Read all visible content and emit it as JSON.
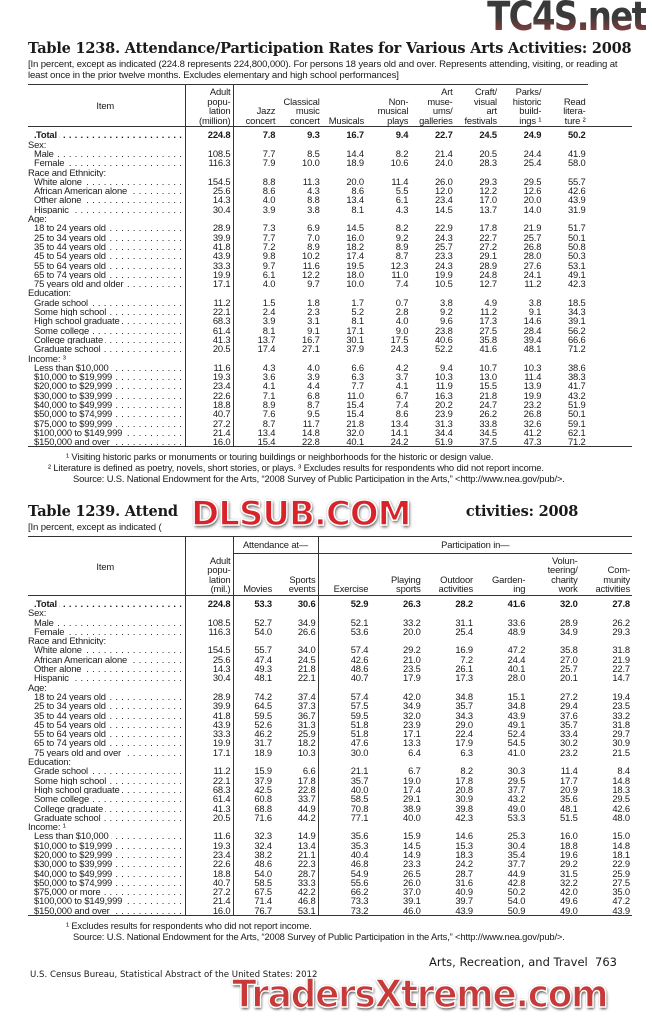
{
  "watermarks": {
    "top": "TC4S.net",
    "middle": "DLSUB.COM",
    "bottom": "TradersXtreme.com"
  },
  "table1": {
    "title": "Table 1238. Attendance/Participation Rates for Various Arts Activities: 2008",
    "headnote": "[In percent, except as indicated (224.8 represents 224,800,000). For persons 18 years old and over. Represents attending, visiting, or reading at least once in the prior twelve months. Excludes elementary and high school performances]",
    "columns": [
      "Item",
      "Adult\npopu-\nlation\n(million)",
      "Jazz\nconcert",
      "Classical\nmusic\nconcert",
      "Musicals",
      "Non-\nmusical\nplays",
      "Art\nmuse-\nums/\ngalleries",
      "Craft/\nvisual\nart\nfestivals",
      "Parks/\nhistoric\nbuild-\nings ¹",
      "Read\nlitera-\nture ²"
    ],
    "rows": [
      {
        "label": "Total",
        "kind": "total",
        "values": [
          "224.8",
          "7.8",
          "9.3",
          "16.7",
          "9.4",
          "22.7",
          "24.5",
          "24.9",
          "50.2"
        ]
      },
      {
        "label": "Sex:",
        "kind": "group"
      },
      {
        "label": "Male",
        "values": [
          "108.5",
          "7.7",
          "8.5",
          "14.4",
          "8.2",
          "21.4",
          "20.5",
          "24.4",
          "41.9"
        ]
      },
      {
        "label": "Female",
        "values": [
          "116.3",
          "7.9",
          "10.0",
          "18.9",
          "10.6",
          "24.0",
          "28.3",
          "25.4",
          "58.0"
        ]
      },
      {
        "label": "Race and Ethnicity:",
        "kind": "group"
      },
      {
        "label": "White alone",
        "values": [
          "154.5",
          "8.8",
          "11.3",
          "20.0",
          "11.4",
          "26.0",
          "29.3",
          "29.5",
          "55.7"
        ]
      },
      {
        "label": "African American alone",
        "values": [
          "25.6",
          "8.6",
          "4.3",
          "8.6",
          "5.5",
          "12.0",
          "12.2",
          "12.6",
          "42.6"
        ]
      },
      {
        "label": "Other alone",
        "values": [
          "14.3",
          "4.0",
          "8.8",
          "13.4",
          "6.1",
          "23.4",
          "17.0",
          "20.0",
          "43.9"
        ]
      },
      {
        "label": "Hispanic",
        "values": [
          "30.4",
          "3.9",
          "3.8",
          "8.1",
          "4.3",
          "14.5",
          "13.7",
          "14.0",
          "31.9"
        ]
      },
      {
        "label": "Age:",
        "kind": "group"
      },
      {
        "label": "18 to 24 years old",
        "values": [
          "28.9",
          "7.3",
          "6.9",
          "14.5",
          "8.2",
          "22.9",
          "17.8",
          "21.9",
          "51.7"
        ]
      },
      {
        "label": "25 to 34 years old",
        "values": [
          "39.9",
          "7.7",
          "7.0",
          "16.0",
          "9.2",
          "24.3",
          "22.7",
          "25.7",
          "50.1"
        ]
      },
      {
        "label": "35 to 44 years old",
        "values": [
          "41.8",
          "7.2",
          "8.9",
          "18.2",
          "8.9",
          "25.7",
          "27.2",
          "26.8",
          "50.8"
        ]
      },
      {
        "label": "45 to 54 years old",
        "values": [
          "43.9",
          "9.8",
          "10.2",
          "17.4",
          "8.7",
          "23.3",
          "29.1",
          "28.0",
          "50.3"
        ]
      },
      {
        "label": "55 to 64 years old",
        "values": [
          "33.3",
          "9.7",
          "11.6",
          "19.5",
          "12.3",
          "24.3",
          "28.9",
          "27.6",
          "53.1"
        ]
      },
      {
        "label": "65 to 74 years old",
        "values": [
          "19.9",
          "6.1",
          "12.2",
          "18.0",
          "11.0",
          "19.9",
          "24.8",
          "24.1",
          "49.1"
        ]
      },
      {
        "label": "75 years old and older",
        "values": [
          "17.1",
          "4.0",
          "9.7",
          "10.0",
          "7.4",
          "10.5",
          "12.7",
          "11.2",
          "42.3"
        ]
      },
      {
        "label": "Education:",
        "kind": "group"
      },
      {
        "label": "Grade school",
        "values": [
          "11.2",
          "1.5",
          "1.8",
          "1.7",
          "0.7",
          "3.8",
          "4.9",
          "3.8",
          "18.5"
        ]
      },
      {
        "label": "Some high school",
        "values": [
          "22.1",
          "2.4",
          "2.3",
          "5.2",
          "2.8",
          "9.2",
          "11.2",
          "9.1",
          "34.3"
        ]
      },
      {
        "label": "High school graduate",
        "values": [
          "68.3",
          "3.9",
          "3.1",
          "8.1",
          "4.0",
          "9.6",
          "17.3",
          "14.6",
          "39.1"
        ]
      },
      {
        "label": "Some college",
        "values": [
          "61.4",
          "8.1",
          "9.1",
          "17.1",
          "9.0",
          "23.8",
          "27.5",
          "28.4",
          "56.2"
        ]
      },
      {
        "label": "College graduate",
        "values": [
          "41.3",
          "13.7",
          "16.7",
          "30.1",
          "17.5",
          "40.6",
          "35.8",
          "39.4",
          "66.6"
        ]
      },
      {
        "label": "Graduate school",
        "values": [
          "20.5",
          "17.4",
          "27.1",
          "37.9",
          "24.3",
          "52.2",
          "41.6",
          "48.1",
          "71.2"
        ]
      },
      {
        "label": "Income: ³",
        "kind": "group"
      },
      {
        "label": "Less than $10,000",
        "values": [
          "11.6",
          "4.3",
          "4.0",
          "6.6",
          "4.2",
          "9.4",
          "10.7",
          "10.3",
          "38.6"
        ]
      },
      {
        "label": "$10,000 to $19,999",
        "values": [
          "19.3",
          "3.6",
          "3.9",
          "6.3",
          "3.7",
          "10.3",
          "13.0",
          "11.4",
          "38.3"
        ]
      },
      {
        "label": "$20,000 to $29,999",
        "values": [
          "23.4",
          "4.1",
          "4.4",
          "7.7",
          "4.1",
          "11.9",
          "15.5",
          "13.9",
          "41.7"
        ]
      },
      {
        "label": "$30,000 to $39,999",
        "values": [
          "22.6",
          "7.1",
          "6.8",
          "11.0",
          "6.7",
          "16.3",
          "21.8",
          "19.9",
          "43.2"
        ]
      },
      {
        "label": "$40,000 to $49,999",
        "values": [
          "18.8",
          "8.9",
          "8.7",
          "15.4",
          "7.4",
          "20.2",
          "24.7",
          "23.2",
          "51.9"
        ]
      },
      {
        "label": "$50,000 to $74,999",
        "values": [
          "40.7",
          "7.6",
          "9.5",
          "15.4",
          "8.6",
          "23.9",
          "26.2",
          "26.8",
          "50.1"
        ]
      },
      {
        "label": "$75,000 to $99,999",
        "values": [
          "27.2",
          "8.7",
          "11.7",
          "21.8",
          "13.4",
          "31.3",
          "33.8",
          "32.6",
          "59.1"
        ]
      },
      {
        "label": "$100,000 to $149,999",
        "values": [
          "21.4",
          "13.4",
          "14.8",
          "32.0",
          "14.1",
          "34.4",
          "34.5",
          "41.2",
          "62.1"
        ]
      },
      {
        "label": "$150,000 and over",
        "values": [
          "16.0",
          "15.4",
          "22.8",
          "40.1",
          "24.2",
          "51.9",
          "37.5",
          "47.3",
          "71.2"
        ]
      }
    ],
    "footnotes": [
      "¹ Visiting historic parks or monuments or touring buildings or neighborhoods for the historic or design value.",
      "² Literature is defined as poetry, novels, short stories, or plays. ³ Excludes results for respondents who did not report income.",
      "Source: U.S. National Endowment for the Arts, “2008 Survey of Public Participation in the Arts,” <http://www.nea.gov/pub/>."
    ]
  },
  "table2": {
    "title_start": "Table 1239. Attend",
    "title_end": "ctivities: 2008",
    "headnote": "[In percent, except as indicated (",
    "span_headers": [
      "Attendance at—",
      "Participation in—"
    ],
    "columns": [
      "Item",
      "Adult\npopu-\nlation\n(mil.)",
      "Movies",
      "Sports\nevents",
      "Exercise",
      "Playing\nsports",
      "Outdoor\nactivities",
      "Garden-\ning",
      "Volun-\nteering/\ncharity\nwork",
      "Com-\nmunity\nactivities"
    ],
    "rows": [
      {
        "label": "Total",
        "kind": "total",
        "values": [
          "224.8",
          "53.3",
          "30.6",
          "52.9",
          "26.3",
          "28.2",
          "41.6",
          "32.0",
          "27.8"
        ]
      },
      {
        "label": "Sex:",
        "kind": "group"
      },
      {
        "label": "Male",
        "values": [
          "108.5",
          "52.7",
          "34.9",
          "52.1",
          "33.2",
          "31.1",
          "33.6",
          "28.9",
          "26.2"
        ]
      },
      {
        "label": "Female",
        "values": [
          "116.3",
          "54.0",
          "26.6",
          "53.6",
          "20.0",
          "25.4",
          "48.9",
          "34.9",
          "29.3"
        ]
      },
      {
        "label": "Race and Ethnicity:",
        "kind": "group"
      },
      {
        "label": "White alone",
        "values": [
          "154.5",
          "55.7",
          "34.0",
          "57.4",
          "29.2",
          "16.9",
          "47.2",
          "35.8",
          "31.8"
        ]
      },
      {
        "label": "African American alone",
        "values": [
          "25.6",
          "47.4",
          "24.5",
          "42.6",
          "21.0",
          "7.2",
          "24.4",
          "27.0",
          "21.9"
        ]
      },
      {
        "label": "Other alone",
        "values": [
          "14.3",
          "49.3",
          "21.8",
          "48.6",
          "23.5",
          "26.1",
          "40.1",
          "25.7",
          "22.7"
        ]
      },
      {
        "label": "Hispanic",
        "values": [
          "30.4",
          "48.1",
          "22.1",
          "40.7",
          "17.9",
          "17.3",
          "28.0",
          "20.1",
          "14.7"
        ]
      },
      {
        "label": "Age:",
        "kind": "group"
      },
      {
        "label": "18 to 24 years old",
        "values": [
          "28.9",
          "74.2",
          "37.4",
          "57.4",
          "42.0",
          "34.8",
          "15.1",
          "27.2",
          "19.4"
        ]
      },
      {
        "label": "25 to 34 years old",
        "values": [
          "39.9",
          "64.5",
          "37.3",
          "57.5",
          "34.9",
          "35.7",
          "34.8",
          "29.4",
          "23.5"
        ]
      },
      {
        "label": "35 to 44 years old",
        "values": [
          "41.8",
          "59.5",
          "36.7",
          "59.5",
          "32.0",
          "34.3",
          "43.9",
          "37.6",
          "33.2"
        ]
      },
      {
        "label": "45 to 54 years old",
        "values": [
          "43.9",
          "52.6",
          "31.3",
          "51.8",
          "23.9",
          "29.0",
          "49.1",
          "35.7",
          "31.8"
        ]
      },
      {
        "label": "55 to 64 years old",
        "values": [
          "33.3",
          "46.2",
          "25.9",
          "51.8",
          "17.1",
          "22.4",
          "52.4",
          "33.4",
          "29.7"
        ]
      },
      {
        "label": "65 to 74 years old",
        "values": [
          "19.9",
          "31.7",
          "18.2",
          "47.6",
          "13.3",
          "17.9",
          "54.5",
          "30.2",
          "30.9"
        ]
      },
      {
        "label": "75 years old and over",
        "values": [
          "17.1",
          "18.9",
          "10.3",
          "30.0",
          "6.4",
          "6.3",
          "41.0",
          "23.2",
          "21.5"
        ]
      },
      {
        "label": "Education:",
        "kind": "group"
      },
      {
        "label": "Grade school",
        "values": [
          "11.2",
          "15.9",
          "6.6",
          "21.1",
          "6.7",
          "8.2",
          "30.3",
          "11.4",
          "8.4"
        ]
      },
      {
        "label": "Some high school",
        "values": [
          "22.1",
          "37.9",
          "17.8",
          "35.7",
          "19.0",
          "17.8",
          "29.5",
          "17.7",
          "14.8"
        ]
      },
      {
        "label": "High school graduate",
        "values": [
          "68.3",
          "42.5",
          "22.8",
          "40.0",
          "17.4",
          "20.8",
          "37.7",
          "20.9",
          "18.3"
        ]
      },
      {
        "label": "Some college",
        "values": [
          "61.4",
          "60.8",
          "33.7",
          "58.5",
          "29.1",
          "30.9",
          "43.2",
          "35.6",
          "29.5"
        ]
      },
      {
        "label": "College graduate",
        "values": [
          "41.3",
          "68.8",
          "44.9",
          "70.8",
          "38.9",
          "39.8",
          "49.0",
          "48.1",
          "42.6"
        ]
      },
      {
        "label": "Graduate school",
        "values": [
          "20.5",
          "71.6",
          "44.2",
          "77.1",
          "40.0",
          "42.3",
          "53.3",
          "51.5",
          "48.0"
        ]
      },
      {
        "label": "Income: ¹",
        "kind": "group"
      },
      {
        "label": "Less than $10,000",
        "values": [
          "11.6",
          "32.3",
          "14.9",
          "35.6",
          "15.9",
          "14.6",
          "25.3",
          "16.0",
          "15.0"
        ]
      },
      {
        "label": "$10,000 to $19,999",
        "values": [
          "19.3",
          "32.4",
          "13.4",
          "35.3",
          "14.5",
          "15.3",
          "30.4",
          "18.8",
          "14.8"
        ]
      },
      {
        "label": "$20,000 to $29,999",
        "values": [
          "23.4",
          "38.2",
          "21.1",
          "40.4",
          "14.9",
          "18.3",
          "35.4",
          "19.6",
          "18.1"
        ]
      },
      {
        "label": "$30,000 to $39,999",
        "values": [
          "22.6",
          "48.6",
          "22.3",
          "46.8",
          "23.3",
          "24.2",
          "37.7",
          "29.2",
          "22.9"
        ]
      },
      {
        "label": "$40,000 to $49,999",
        "values": [
          "18.8",
          "54.0",
          "28.7",
          "54.9",
          "26.5",
          "28.7",
          "44.9",
          "31.5",
          "25.9"
        ]
      },
      {
        "label": "$50,000 to $74,999",
        "values": [
          "40.7",
          "58.5",
          "33.3",
          "55.6",
          "26.0",
          "31.6",
          "42.8",
          "32.2",
          "27.5"
        ]
      },
      {
        "label": "$75,000 or more",
        "values": [
          "27.2",
          "67.5",
          "42.2",
          "66.2",
          "37.0",
          "40.9",
          "50.2",
          "42.0",
          "35.0"
        ]
      },
      {
        "label": "$100,000 to $149,999",
        "values": [
          "21.4",
          "71.4",
          "46.8",
          "73.3",
          "39.1",
          "39.7",
          "54.0",
          "49.6",
          "47.2"
        ]
      },
      {
        "label": "$150,000 and over",
        "values": [
          "16.0",
          "76.7",
          "53.1",
          "73.2",
          "46.0",
          "43.9",
          "50.9",
          "49.0",
          "43.9"
        ]
      }
    ],
    "footnotes": [
      "¹ Excludes results for respondents who did not report income.",
      "Source: U.S. National Endowment for the Arts, “2008 Survey of Public Participation in the Arts,” <http://www.nea.gov/pub/>."
    ]
  },
  "footer": {
    "section": "Arts, Recreation, and Travel",
    "page_number": "763",
    "publication": "U.S. Census Bureau, Statistical Abstract of the United States: 2012"
  }
}
